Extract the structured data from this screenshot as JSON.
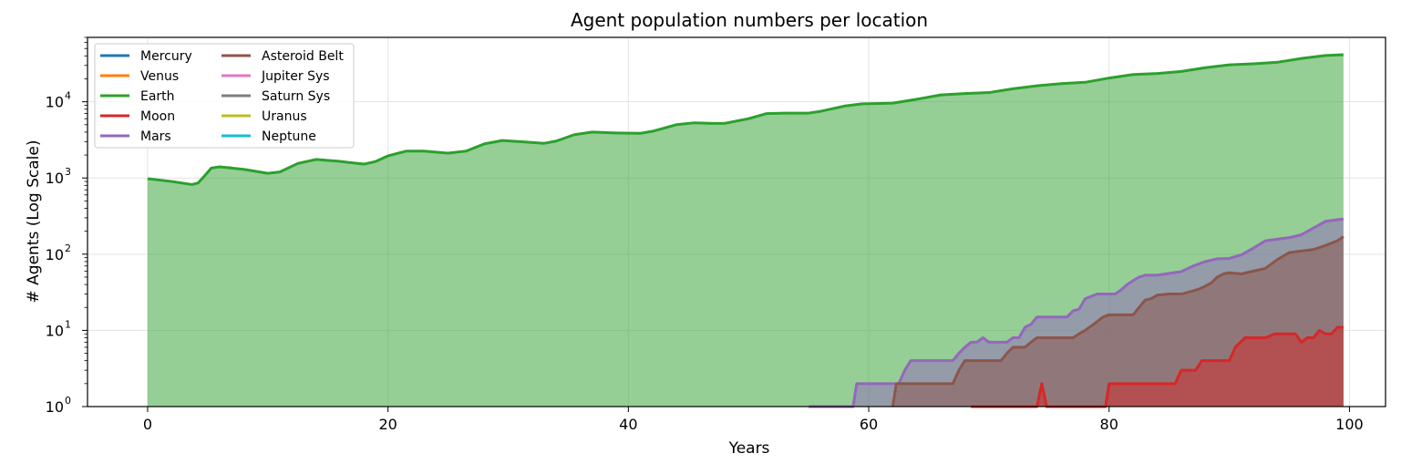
{
  "chart_data": {
    "type": "area",
    "title": "Agent population numbers per location",
    "xlabel": "Years",
    "ylabel": "# Agents (Log Scale)",
    "xlim": [
      -5,
      103
    ],
    "ylim": [
      1,
      70000
    ],
    "yscale": "log",
    "grid": true,
    "legend_position": "top-left",
    "x_ticks": [
      0,
      20,
      40,
      60,
      80,
      100
    ],
    "x_tick_labels": [
      "0",
      "20",
      "40",
      "60",
      "80",
      "100"
    ],
    "y_ticks": [
      1,
      10,
      100,
      1000,
      10000
    ],
    "y_tick_labels": [
      {
        "base": "10",
        "exp": "0"
      },
      {
        "base": "10",
        "exp": "1"
      },
      {
        "base": "10",
        "exp": "2"
      },
      {
        "base": "10",
        "exp": "3"
      },
      {
        "base": "10",
        "exp": "4"
      }
    ],
    "series": [
      {
        "name": "Mercury",
        "color": "#1f77b4",
        "points": []
      },
      {
        "name": "Venus",
        "color": "#ff7f0e",
        "points": []
      },
      {
        "name": "Earth",
        "color": "#2ca02c",
        "points": [
          [
            0,
            980
          ],
          [
            2,
            900
          ],
          [
            3.7,
            820
          ],
          [
            4.2,
            860
          ],
          [
            4.7,
            1050
          ],
          [
            5.3,
            1350
          ],
          [
            6,
            1400
          ],
          [
            8,
            1300
          ],
          [
            10,
            1150
          ],
          [
            11,
            1200
          ],
          [
            12.5,
            1550
          ],
          [
            14,
            1750
          ],
          [
            16,
            1650
          ],
          [
            18,
            1520
          ],
          [
            19,
            1650
          ],
          [
            20,
            1950
          ],
          [
            21.5,
            2250
          ],
          [
            23,
            2250
          ],
          [
            25,
            2120
          ],
          [
            26.5,
            2250
          ],
          [
            28,
            2800
          ],
          [
            29.5,
            3100
          ],
          [
            31,
            3000
          ],
          [
            33,
            2850
          ],
          [
            34,
            3050
          ],
          [
            35.5,
            3700
          ],
          [
            37,
            4000
          ],
          [
            39,
            3900
          ],
          [
            41,
            3850
          ],
          [
            42,
            4100
          ],
          [
            44,
            5000
          ],
          [
            45.5,
            5300
          ],
          [
            47,
            5200
          ],
          [
            48,
            5200
          ],
          [
            50,
            6000
          ],
          [
            51.5,
            7000
          ],
          [
            53,
            7100
          ],
          [
            55,
            7100
          ],
          [
            56,
            7500
          ],
          [
            58,
            8800
          ],
          [
            59.5,
            9400
          ],
          [
            61,
            9500
          ],
          [
            62,
            9600
          ],
          [
            64,
            10800
          ],
          [
            66,
            12300
          ],
          [
            68,
            12800
          ],
          [
            70,
            13200
          ],
          [
            72,
            14800
          ],
          [
            74,
            16200
          ],
          [
            76,
            17300
          ],
          [
            78,
            18000
          ],
          [
            80,
            20500
          ],
          [
            82,
            22800
          ],
          [
            84,
            23500
          ],
          [
            86,
            25000
          ],
          [
            88,
            28000
          ],
          [
            90,
            30500
          ],
          [
            92,
            31500
          ],
          [
            94,
            33000
          ],
          [
            96,
            37000
          ],
          [
            98,
            40500
          ],
          [
            99.5,
            41500
          ]
        ]
      },
      {
        "name": "Moon",
        "color": "#d62728",
        "points": [
          [
            68.5,
            1
          ],
          [
            74,
            1
          ],
          [
            74.4,
            2
          ],
          [
            74.8,
            1
          ],
          [
            79.7,
            1
          ],
          [
            80,
            2
          ],
          [
            85.5,
            2
          ],
          [
            86,
            3
          ],
          [
            87.2,
            3
          ],
          [
            87.7,
            4
          ],
          [
            90,
            4
          ],
          [
            90.5,
            6
          ],
          [
            91.3,
            8
          ],
          [
            93,
            8
          ],
          [
            93.8,
            9
          ],
          [
            95.5,
            9
          ],
          [
            96,
            7
          ],
          [
            96.5,
            8
          ],
          [
            97,
            8
          ],
          [
            97.5,
            10
          ],
          [
            98,
            9
          ],
          [
            98.5,
            9
          ],
          [
            99,
            11
          ],
          [
            99.5,
            11
          ]
        ]
      },
      {
        "name": "Mars",
        "color": "#9467bd",
        "points": [
          [
            55,
            1
          ],
          [
            58.7,
            1
          ],
          [
            59,
            2
          ],
          [
            62.5,
            2
          ],
          [
            63,
            3
          ],
          [
            63.5,
            4
          ],
          [
            67,
            4
          ],
          [
            67.5,
            5
          ],
          [
            68,
            6
          ],
          [
            68.5,
            7
          ],
          [
            69,
            7
          ],
          [
            69.5,
            8
          ],
          [
            70,
            7
          ],
          [
            71.5,
            7
          ],
          [
            72,
            8
          ],
          [
            72.5,
            8
          ],
          [
            73,
            11
          ],
          [
            73.5,
            12
          ],
          [
            74,
            15
          ],
          [
            76.5,
            15
          ],
          [
            77,
            18
          ],
          [
            77.5,
            19
          ],
          [
            78,
            26
          ],
          [
            79,
            30
          ],
          [
            80.5,
            30
          ],
          [
            81,
            34
          ],
          [
            81.5,
            40
          ],
          [
            82,
            45
          ],
          [
            82.5,
            50
          ],
          [
            83,
            53
          ],
          [
            84,
            53
          ],
          [
            85,
            56
          ],
          [
            86,
            59
          ],
          [
            87,
            70
          ],
          [
            88,
            80
          ],
          [
            89,
            87
          ],
          [
            90,
            88
          ],
          [
            91,
            98
          ],
          [
            92,
            120
          ],
          [
            93,
            150
          ],
          [
            95,
            165
          ],
          [
            96,
            180
          ],
          [
            97,
            220
          ],
          [
            98,
            270
          ],
          [
            99.5,
            290
          ]
        ]
      },
      {
        "name": "Asteroid Belt",
        "color": "#8c564b",
        "points": [
          [
            62,
            1
          ],
          [
            62.3,
            2
          ],
          [
            67,
            2
          ],
          [
            67.5,
            3
          ],
          [
            68,
            4
          ],
          [
            71,
            4
          ],
          [
            71.5,
            5
          ],
          [
            72,
            6
          ],
          [
            73,
            6
          ],
          [
            73.5,
            7
          ],
          [
            74,
            8
          ],
          [
            77,
            8
          ],
          [
            77.5,
            9
          ],
          [
            78,
            10
          ],
          [
            78.7,
            12
          ],
          [
            79.5,
            15
          ],
          [
            80,
            16
          ],
          [
            82,
            16
          ],
          [
            82.5,
            20
          ],
          [
            83,
            25
          ],
          [
            83.5,
            26
          ],
          [
            84,
            29
          ],
          [
            85,
            30
          ],
          [
            86,
            30
          ],
          [
            87,
            33
          ],
          [
            87.5,
            35
          ],
          [
            88,
            38
          ],
          [
            88.5,
            42
          ],
          [
            89,
            50
          ],
          [
            89.5,
            55
          ],
          [
            90,
            57
          ],
          [
            91,
            55
          ],
          [
            92,
            60
          ],
          [
            93,
            65
          ],
          [
            94,
            85
          ],
          [
            95,
            105
          ],
          [
            96,
            110
          ],
          [
            97,
            115
          ],
          [
            98,
            130
          ],
          [
            99,
            150
          ],
          [
            99.5,
            170
          ]
        ]
      },
      {
        "name": "Jupiter Sys",
        "color": "#e377c2",
        "points": []
      },
      {
        "name": "Saturn Sys",
        "color": "#7f7f7f",
        "points": []
      },
      {
        "name": "Uranus",
        "color": "#bcbd22",
        "points": []
      },
      {
        "name": "Neptune",
        "color": "#17becf",
        "points": []
      }
    ]
  }
}
